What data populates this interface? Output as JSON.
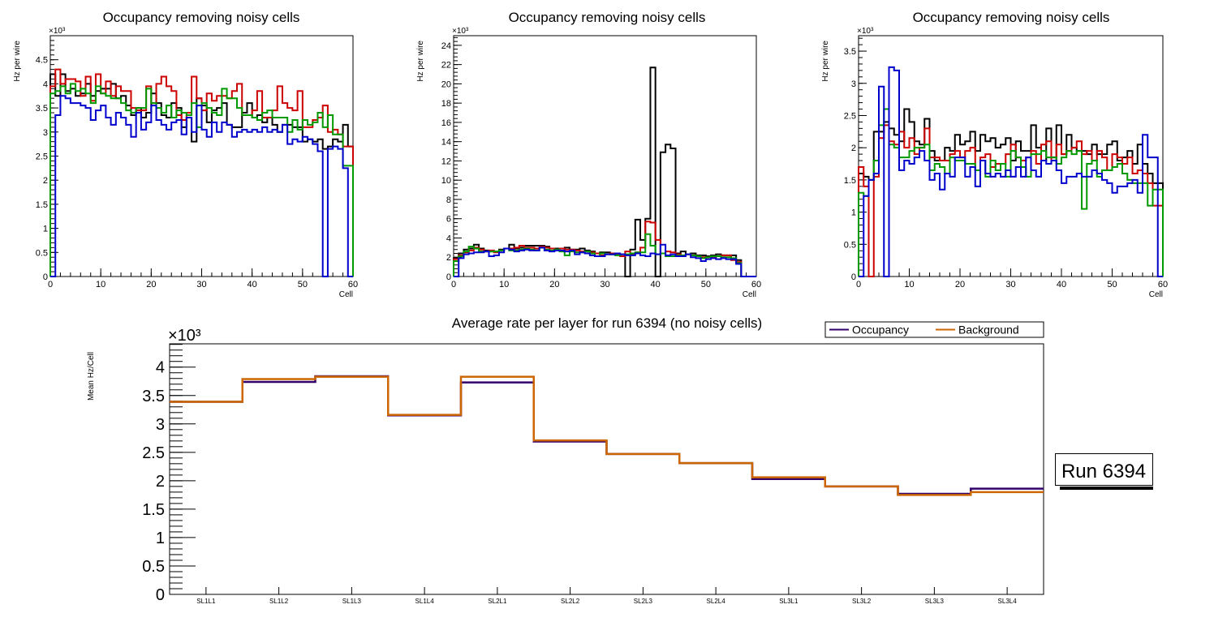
{
  "chart_data": [
    {
      "type": "line",
      "style": "step-histogram",
      "title": "Occupancy removing noisy cells",
      "xlabel": "Cell",
      "ylabel": "Hz per wire",
      "y_multiplier": "×10³",
      "xlim": [
        0,
        60
      ],
      "ylim": [
        0,
        5.0
      ],
      "x_ticks": [
        "0",
        "10",
        "20",
        "30",
        "40",
        "50",
        "60"
      ],
      "y_ticks": [
        "0",
        "0.5",
        "1",
        "1.5",
        "2",
        "2.5",
        "3",
        "3.5",
        "4",
        "4.5"
      ],
      "series": [
        {
          "name": "black",
          "color": "#000000",
          "values": [
            4.2,
            3.75,
            4.2,
            3.85,
            3.9,
            3.75,
            3.8,
            4.0,
            3.75,
            3.85,
            3.9,
            3.9,
            4.0,
            3.7,
            3.75,
            3.55,
            3.35,
            3.5,
            3.3,
            3.4,
            3.8,
            3.6,
            3.35,
            3.3,
            3.6,
            3.5,
            3.1,
            3.3,
            2.8,
            3.7,
            3.55,
            3.2,
            3.45,
            3.5,
            3.6,
            3.15,
            3.1,
            3.1,
            3.4,
            3.6,
            3.3,
            3.35,
            3.2,
            3.3,
            3.15,
            3.0,
            3.15,
            3.15,
            3.1,
            3.1,
            2.8,
            2.85,
            2.8,
            2.85,
            2.65,
            2.7,
            2.85,
            2.8,
            3.15,
            2.7
          ]
        },
        {
          "name": "red",
          "color": "#cc0000",
          "values": [
            3.95,
            4.3,
            4.0,
            4.1,
            4.1,
            4.05,
            3.75,
            4.15,
            3.65,
            4.2,
            3.8,
            4.05,
            3.75,
            3.95,
            3.85,
            3.85,
            3.5,
            3.45,
            3.45,
            3.95,
            3.6,
            4.0,
            4.15,
            3.95,
            3.85,
            3.35,
            3.25,
            3.4,
            4.15,
            3.7,
            3.45,
            3.8,
            3.65,
            3.75,
            3.75,
            3.7,
            3.85,
            4.0,
            3.35,
            3.35,
            3.45,
            3.85,
            3.3,
            3.3,
            3.45,
            3.95,
            3.6,
            3.5,
            3.45,
            3.85,
            3.1,
            3.1,
            3.25,
            3.3,
            3.55,
            3.0,
            3.05,
            2.95,
            2.7,
            2.7
          ]
        },
        {
          "name": "green",
          "color": "#009900",
          "values": [
            3.8,
            3.85,
            3.95,
            3.8,
            4.0,
            3.85,
            3.9,
            3.8,
            3.6,
            3.95,
            3.8,
            3.75,
            3.7,
            3.7,
            3.6,
            3.45,
            3.4,
            3.5,
            3.5,
            3.9,
            3.6,
            3.5,
            3.4,
            3.55,
            3.3,
            3.45,
            3.4,
            3.35,
            3.6,
            3.1,
            3.6,
            3.5,
            3.4,
            3.35,
            3.9,
            3.7,
            3.7,
            3.5,
            3.35,
            3.35,
            3.3,
            3.25,
            3.4,
            3.45,
            3.3,
            3.3,
            3.3,
            3.0,
            3.25,
            3.05,
            3.25,
            3.15,
            3.2,
            3.4,
            3.1,
            3.35,
            2.95,
            2.95,
            2.3,
            2.3
          ]
        },
        {
          "name": "blue",
          "color": "#0000cc",
          "values": [
            0,
            3.35,
            3.75,
            3.7,
            3.6,
            3.6,
            3.55,
            3.5,
            3.25,
            3.45,
            3.55,
            3.3,
            3.15,
            3.4,
            3.3,
            3.15,
            2.9,
            3.4,
            3.05,
            3.2,
            3.55,
            3.25,
            3.15,
            3.05,
            3.2,
            3.25,
            2.95,
            3.3,
            3.0,
            3.55,
            3.05,
            2.9,
            3.2,
            3.0,
            3.2,
            3.15,
            2.9,
            3.0,
            3.05,
            3.0,
            3.05,
            3.0,
            3.1,
            3.0,
            3.05,
            3.0,
            3.15,
            2.75,
            2.85,
            2.8,
            2.9,
            2.85,
            2.75,
            2.6,
            0,
            2.65,
            2.7,
            2.65,
            2.25,
            0
          ]
        }
      ]
    },
    {
      "type": "line",
      "style": "step-histogram",
      "title": "Occupancy removing noisy cells",
      "xlabel": "Cell",
      "ylabel": "Hz per wire",
      "y_multiplier": "×10³",
      "xlim": [
        0,
        60
      ],
      "ylim": [
        0,
        25.0
      ],
      "x_ticks": [
        "0",
        "10",
        "20",
        "30",
        "40",
        "50",
        "60"
      ],
      "y_ticks": [
        "0",
        "2",
        "4",
        "6",
        "8",
        "10",
        "12",
        "14",
        "16",
        "18",
        "20",
        "22",
        "24"
      ],
      "series": [
        {
          "name": "black",
          "color": "#000000",
          "values": [
            1.9,
            2.4,
            2.8,
            2.9,
            3.3,
            2.9,
            2.7,
            2.6,
            2.6,
            2.8,
            2.9,
            3.3,
            2.9,
            3.0,
            3.2,
            3.2,
            3.2,
            3.2,
            3.1,
            2.9,
            2.9,
            2.9,
            3.0,
            2.8,
            2.8,
            2.9,
            2.7,
            2.6,
            2.4,
            2.5,
            2.5,
            2.3,
            2.3,
            2.3,
            0,
            2.8,
            5.9,
            3.8,
            6.0,
            21.7,
            0,
            12.9,
            13.7,
            13.3,
            2.4,
            2.6,
            2.3,
            2.4,
            2.2,
            2.2,
            2.1,
            2.2,
            2.3,
            2.2,
            2.2,
            2.2,
            1.7,
            0,
            0,
            0
          ]
        },
        {
          "name": "red",
          "color": "#cc0000",
          "values": [
            1.8,
            2.2,
            2.5,
            2.7,
            3.0,
            2.8,
            2.6,
            2.7,
            2.5,
            2.7,
            2.9,
            2.9,
            3.0,
            3.2,
            3.0,
            3.0,
            2.9,
            3.1,
            3.0,
            2.9,
            2.8,
            2.9,
            2.8,
            2.8,
            2.7,
            2.6,
            2.6,
            2.5,
            2.4,
            2.2,
            2.3,
            2.4,
            2.3,
            2.1,
            2.6,
            2.3,
            2.5,
            3.0,
            5.7,
            5.6,
            3.8,
            2.4,
            2.6,
            2.5,
            2.3,
            2.2,
            2.3,
            2.2,
            2.1,
            2.0,
            2.0,
            2.0,
            2.1,
            2.2,
            2.2,
            1.7,
            1.5,
            0,
            0,
            0
          ]
        },
        {
          "name": "green",
          "color": "#009900",
          "values": [
            1.6,
            2.1,
            2.6,
            3.1,
            2.9,
            2.6,
            2.6,
            2.6,
            2.6,
            2.7,
            2.9,
            2.7,
            2.7,
            2.8,
            2.9,
            2.8,
            2.7,
            3.0,
            2.8,
            2.7,
            2.8,
            2.6,
            2.2,
            2.6,
            2.5,
            2.5,
            2.6,
            2.4,
            2.1,
            2.4,
            2.3,
            2.3,
            2.2,
            2.3,
            2.3,
            2.4,
            2.5,
            2.5,
            4.4,
            3.2,
            2.3,
            2.4,
            2.1,
            2.1,
            2.2,
            2.2,
            2.3,
            2.2,
            2.1,
            1.9,
            2.0,
            2.1,
            2.1,
            2.0,
            2.0,
            1.9,
            1.4,
            0,
            0,
            0
          ]
        },
        {
          "name": "blue",
          "color": "#0000cc",
          "values": [
            0,
            1.9,
            2.3,
            2.4,
            2.5,
            2.5,
            2.6,
            2.1,
            2.2,
            2.5,
            2.9,
            2.8,
            2.6,
            2.7,
            2.8,
            2.7,
            2.7,
            3.0,
            2.7,
            2.6,
            2.7,
            2.7,
            2.6,
            2.7,
            2.3,
            2.5,
            2.4,
            2.2,
            2.1,
            2.1,
            2.3,
            2.3,
            2.4,
            2.3,
            2.2,
            2.2,
            2.4,
            2.2,
            2.1,
            2.4,
            2.3,
            3.3,
            2.2,
            2.3,
            2.1,
            2.1,
            2.3,
            2.0,
            1.9,
            1.6,
            1.8,
            1.9,
            1.8,
            1.9,
            1.8,
            1.8,
            1.3,
            0,
            0,
            0
          ]
        }
      ]
    },
    {
      "type": "line",
      "style": "step-histogram",
      "title": "Occupancy removing noisy cells",
      "xlabel": "Cell",
      "ylabel": "Hz per wire",
      "y_multiplier": "×10³",
      "xlim": [
        0,
        60
      ],
      "ylim": [
        0,
        3.74
      ],
      "x_ticks": [
        "0",
        "10",
        "20",
        "30",
        "40",
        "50",
        "60"
      ],
      "y_ticks": [
        "0",
        "0.5",
        "1",
        "1.5",
        "2",
        "2.5",
        "3",
        "3.5"
      ],
      "series": [
        {
          "name": "black",
          "color": "#000000",
          "values": [
            1.6,
            1.55,
            1.5,
            2.25,
            2.25,
            2.4,
            2.3,
            2.2,
            2.1,
            2.6,
            2.4,
            2.1,
            2.05,
            2.45,
            1.95,
            1.8,
            1.8,
            2.0,
            1.95,
            2.2,
            2.05,
            2.1,
            2.25,
            1.95,
            2.2,
            2.1,
            2.15,
            2.0,
            2.05,
            2.15,
            1.8,
            2.1,
            1.95,
            1.95,
            2.35,
            2.0,
            1.8,
            2.3,
            1.85,
            2.35,
            1.9,
            2.2,
            2.0,
            1.95,
            1.95,
            1.9,
            2.05,
            1.9,
            1.9,
            2.05,
            2.1,
            1.8,
            1.85,
            1.95,
            1.75,
            2.05,
            1.75,
            1.6,
            1.45,
            1.45
          ]
        },
        {
          "name": "red",
          "color": "#cc0000",
          "values": [
            1.7,
            1.4,
            0,
            1.55,
            2.15,
            2.35,
            2.1,
            2.05,
            2.25,
            2.0,
            2.15,
            1.9,
            2.0,
            2.3,
            1.85,
            1.85,
            1.8,
            1.8,
            1.9,
            1.95,
            1.85,
            1.95,
            2.0,
            1.65,
            1.85,
            1.9,
            1.7,
            1.75,
            1.75,
            1.9,
            2.05,
            1.85,
            1.8,
            1.85,
            1.95,
            1.75,
            2.05,
            2.1,
            1.8,
            2.05,
            1.9,
            1.95,
            2.0,
            2.1,
            1.9,
            1.95,
            1.8,
            1.95,
            1.85,
            1.65,
            1.9,
            1.85,
            1.75,
            1.85,
            1.6,
            1.65,
            1.6,
            1.45,
            1.1,
            1.1
          ]
        },
        {
          "name": "green",
          "color": "#009900",
          "values": [
            1.3,
            1.25,
            1.5,
            1.8,
            2.35,
            2.6,
            2.05,
            2.0,
            1.85,
            1.85,
            1.95,
            2.0,
            2.0,
            2.05,
            1.65,
            1.75,
            1.7,
            1.6,
            1.85,
            1.8,
            1.8,
            1.75,
            1.75,
            1.65,
            1.8,
            1.55,
            1.8,
            1.65,
            1.75,
            1.55,
            1.95,
            1.85,
            1.7,
            1.55,
            1.9,
            1.9,
            1.95,
            1.85,
            1.85,
            1.75,
            1.85,
            1.95,
            1.9,
            1.95,
            1.05,
            1.75,
            1.8,
            1.55,
            1.65,
            1.65,
            1.7,
            1.75,
            1.6,
            1.5,
            1.45,
            1.45,
            1.45,
            1.1,
            1.35,
            1.35
          ]
        },
        {
          "name": "blue",
          "color": "#0000cc",
          "values": [
            0,
            1.25,
            1.5,
            1.6,
            2.95,
            0,
            3.25,
            3.2,
            1.65,
            1.8,
            1.75,
            1.85,
            1.95,
            1.8,
            1.5,
            1.6,
            1.35,
            1.6,
            1.55,
            1.85,
            1.85,
            1.55,
            1.7,
            1.4,
            1.8,
            1.6,
            1.55,
            1.6,
            1.55,
            1.65,
            1.55,
            1.7,
            1.55,
            1.85,
            1.65,
            1.55,
            1.8,
            1.75,
            1.8,
            1.65,
            1.45,
            1.55,
            1.55,
            1.6,
            1.55,
            1.55,
            1.65,
            1.6,
            1.5,
            1.45,
            1.3,
            1.4,
            1.4,
            1.45,
            1.5,
            1.3,
            2.2,
            1.85,
            1.85,
            0
          ]
        }
      ]
    },
    {
      "type": "line",
      "style": "step-histogram",
      "title": "Average rate per layer for run 6394 (no noisy cells)",
      "xlabel": "",
      "ylabel": "Mean Hz/Cell",
      "y_multiplier": "×10³",
      "ylim": [
        0,
        4.41
      ],
      "y_ticks": [
        "0",
        "0.5",
        "1",
        "1.5",
        "2",
        "2.5",
        "3",
        "3.5",
        "4"
      ],
      "categories": [
        "SL1L1",
        "SL1L2",
        "SL1L3",
        "SL1L4",
        "SL2L1",
        "SL2L2",
        "SL2L3",
        "SL2L4",
        "SL3L1",
        "SL3L2",
        "SL3L3",
        "SL3L4"
      ],
      "legend": {
        "placement": "top-right",
        "entries": [
          "Occupancy",
          "Background"
        ]
      },
      "annotation": "Run 6394",
      "series": [
        {
          "name": "Occupancy",
          "color": "#33006b",
          "values": [
            3.39,
            3.74,
            3.84,
            3.15,
            3.73,
            2.69,
            2.47,
            2.31,
            2.03,
            1.9,
            1.77,
            1.86
          ]
        },
        {
          "name": "Background",
          "color": "#cc6600",
          "values": [
            3.39,
            3.79,
            3.83,
            3.16,
            3.83,
            2.71,
            2.47,
            2.31,
            2.06,
            1.9,
            1.75,
            1.8
          ]
        }
      ]
    }
  ]
}
